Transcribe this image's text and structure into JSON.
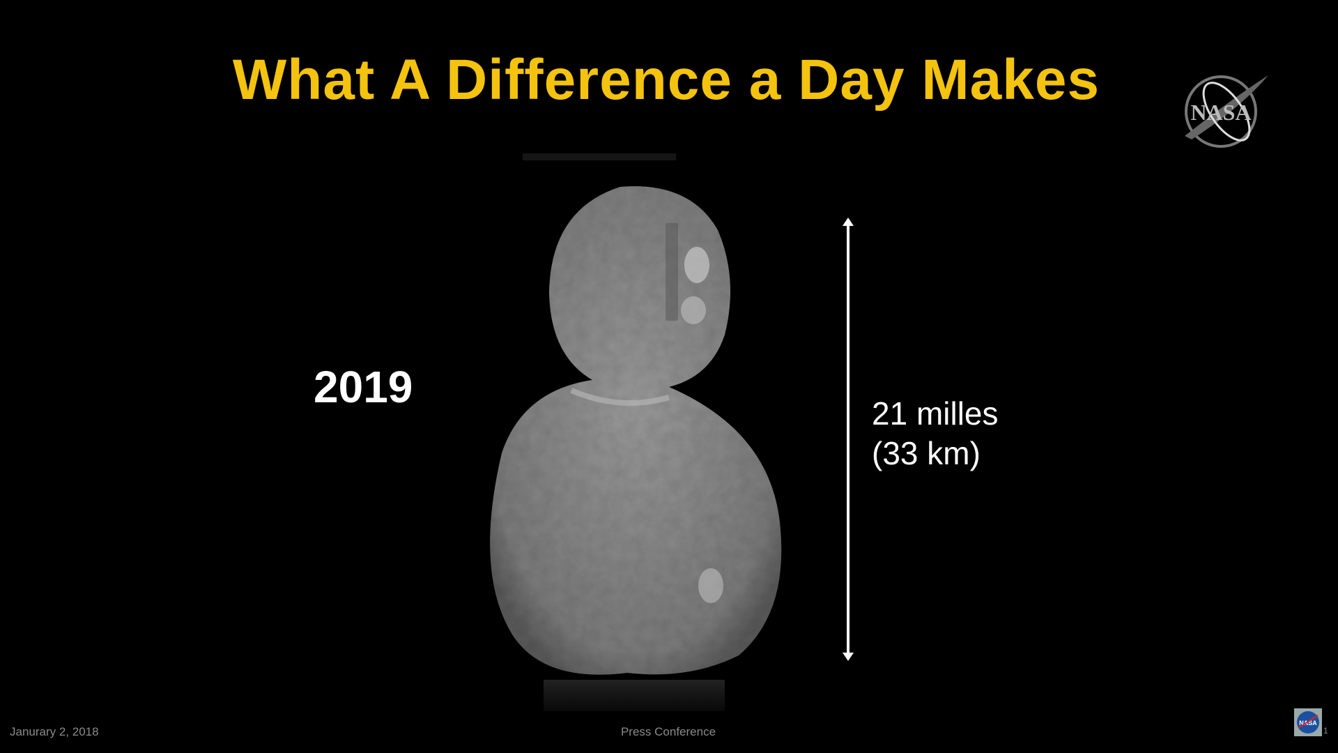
{
  "slide": {
    "title": "What A Difference a Day Makes",
    "year_label": "2019",
    "dimension_line1": "21 milles",
    "dimension_line2": "(33 km)",
    "logo_text": "NASA",
    "title_color": "#f3c30f"
  },
  "footer": {
    "date": "Janurary 2, 2018",
    "event": "Press Conference",
    "page_number": "1"
  }
}
